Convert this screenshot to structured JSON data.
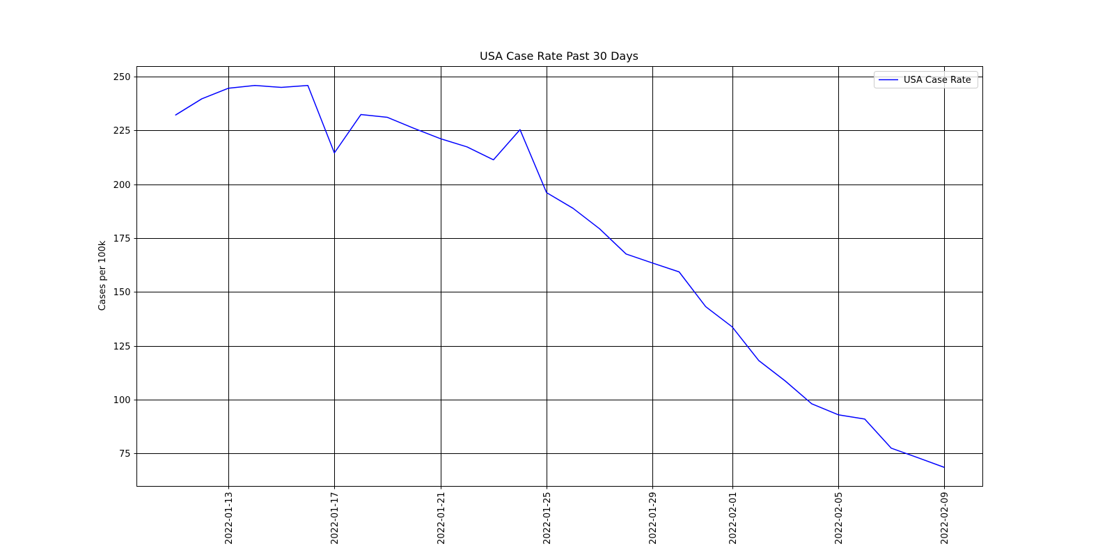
{
  "chart_data": {
    "type": "line",
    "title": "USA Case Rate Past 30 Days",
    "xlabel": "",
    "ylabel": "Cases per 100k",
    "grid": true,
    "legend_position": "top-right",
    "series_color": "#0000ff",
    "x_start_date": "2022-01-11",
    "x_tick_labels": [
      "2022-01-13",
      "2022-01-17",
      "2022-01-21",
      "2022-01-25",
      "2022-01-29",
      "2022-02-01",
      "2022-02-05",
      "2022-02-09"
    ],
    "x_tick_positions": [
      2,
      6,
      10,
      14,
      18,
      21,
      25,
      29
    ],
    "xlim": [
      -1.45,
      30.45
    ],
    "y_ticks": [
      75,
      100,
      125,
      150,
      175,
      200,
      225,
      250
    ],
    "y_tick_labels": [
      "75",
      "100",
      "125",
      "150",
      "175",
      "200",
      "225",
      "250"
    ],
    "ylim": [
      59.8,
      254.6
    ],
    "series": [
      {
        "name": "USA Case Rate",
        "x": [
          0,
          1,
          2,
          3,
          4,
          5,
          6,
          7,
          8,
          9,
          10,
          11,
          12,
          13,
          14,
          15,
          16,
          17,
          18,
          19,
          20,
          21,
          22,
          23,
          24,
          25,
          26,
          27,
          28,
          29
        ],
        "values": [
          232.0,
          239.6,
          244.5,
          245.8,
          244.9,
          245.8,
          214.5,
          232.3,
          231.0,
          225.9,
          221.1,
          217.3,
          211.3,
          225.3,
          196.1,
          188.8,
          179.3,
          167.6,
          163.4,
          159.3,
          143.2,
          133.8,
          118.2,
          108.7,
          98.1,
          93.0,
          91.0,
          77.5,
          73.1,
          68.6
        ]
      }
    ]
  }
}
